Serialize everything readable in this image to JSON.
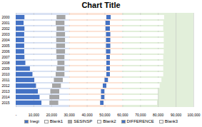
{
  "chart_data": {
    "type": "bar",
    "title": "Chart Title",
    "orientation": "horizontal",
    "stacked": true,
    "categories": [
      "2000",
      "2001",
      "2002",
      "2003",
      "2004",
      "2005",
      "2006",
      "2007",
      "2008",
      "2009",
      "2010",
      "2011",
      "2012",
      "2013",
      "2014",
      "2015"
    ],
    "series": [
      {
        "name": "Inegi",
        "color": "#4472C4",
        "values": [
          5000,
          4500,
          5000,
          4800,
          4800,
          4800,
          4800,
          5000,
          5500,
          8000,
          9500,
          10500,
          11500,
          12500,
          13500,
          14500
        ]
      },
      {
        "name": "Blank1",
        "color": "#FFFFFF",
        "values": [
          18000,
          18000,
          18000,
          18000,
          18000,
          18000,
          18000,
          18000,
          18000,
          15000,
          13000,
          11000,
          9000,
          7000,
          5500,
          4500
        ]
      },
      {
        "name": "SESINSP",
        "color": "#A5A5A5",
        "values": [
          5000,
          5000,
          4500,
          5000,
          5000,
          5000,
          5000,
          4500,
          4000,
          4500,
          5000,
          5000,
          5000,
          5000,
          5500,
          5000
        ]
      },
      {
        "name": "Blank2",
        "color": "#FFFFFF",
        "values": [
          23000,
          23000,
          23000,
          23000,
          23000,
          23000,
          23000,
          23500,
          23500,
          23500,
          23500,
          23500,
          23500,
          23500,
          23500,
          23500
        ]
      },
      {
        "name": "DIFFERENCE",
        "color": "#4472C4",
        "values": [
          2500,
          2500,
          2500,
          2500,
          2500,
          2500,
          2500,
          2000,
          2000,
          2000,
          2000,
          2000,
          2000,
          2000,
          2000,
          2000
        ]
      },
      {
        "name": "Blank3",
        "color": "#FFFFFF",
        "values": [
          30000,
          30000,
          30000,
          30000,
          30000,
          30000,
          30000,
          30000,
          30000,
          30000,
          30000,
          30000,
          30000,
          30000,
          30000,
          30000
        ]
      }
    ],
    "xlim": [
      0,
      100000
    ],
    "xticks": [
      {
        "value": 0,
        "label": "-"
      },
      {
        "value": 10000,
        "label": "10,000"
      },
      {
        "value": 20000,
        "label": "20,000"
      },
      {
        "value": 30000,
        "label": "30,000"
      },
      {
        "value": 40000,
        "label": "40,000"
      },
      {
        "value": 50000,
        "label": "50,000"
      },
      {
        "value": 60000,
        "label": "60,000"
      },
      {
        "value": 70000,
        "label": "70,000"
      },
      {
        "value": 80000,
        "label": "80,000"
      },
      {
        "value": 90000,
        "label": "90,000"
      },
      {
        "value": 100000,
        "label": "100,000"
      }
    ],
    "grid": true,
    "legend": "bottom",
    "bands": [
      {
        "start": 0,
        "end": 30000,
        "color": "#D9E2F3"
      },
      {
        "start": 30000,
        "end": 60000,
        "color": "#FCE4D6"
      },
      {
        "start": 60000,
        "end": 100000,
        "color": "#E2EFDA"
      }
    ]
  }
}
